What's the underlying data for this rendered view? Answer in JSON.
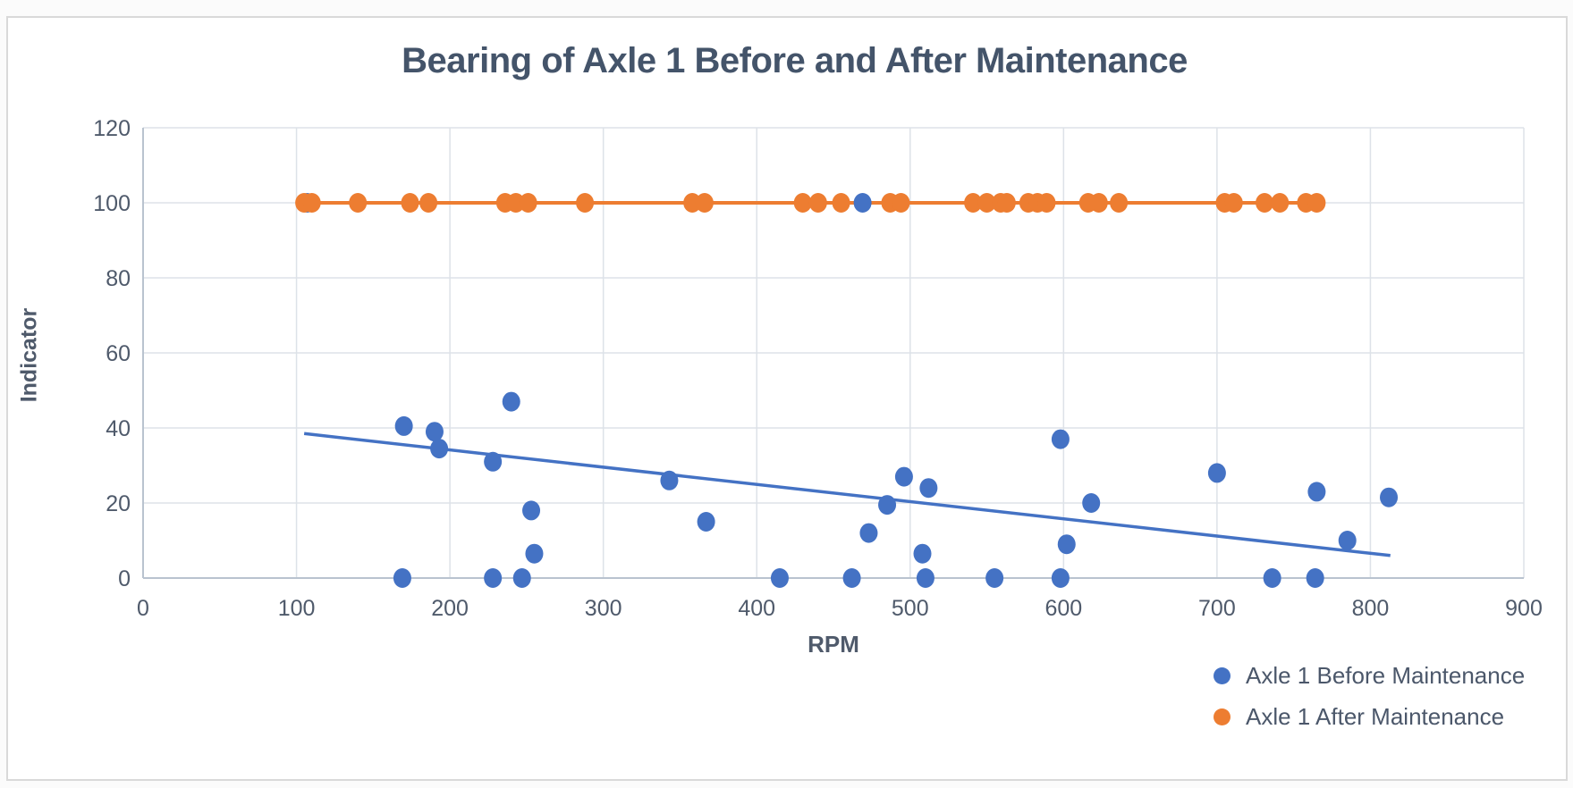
{
  "title": "Bearing of Axle 1 Before and After Maintenance",
  "axes": {
    "x": {
      "title": "RPM",
      "min": 0,
      "max": 900,
      "ticks": [
        0,
        100,
        200,
        300,
        400,
        500,
        600,
        700,
        800,
        900
      ]
    },
    "y": {
      "title": "Indicator",
      "min": 0,
      "max": 120,
      "ticks": [
        0,
        20,
        40,
        60,
        80,
        100,
        120
      ]
    }
  },
  "legend": {
    "items": [
      {
        "label": "Axle 1 Before Maintenance",
        "color": "#4472C4"
      },
      {
        "label": "Axle 1 After Maintenance",
        "color": "#ED7D31"
      }
    ]
  },
  "colors": {
    "blue": "#4472C4",
    "orange": "#ED7D31",
    "title_text": "#44546A",
    "axis_text": "#4f5a6b",
    "gridline": "#dde2e8",
    "axis_line": "#b9c3cf",
    "card_border": "#d9d9d9"
  },
  "chart_data": {
    "type": "scatter",
    "title": "Bearing of Axle 1 Before and After Maintenance",
    "xlabel": "RPM",
    "ylabel": "Indicator",
    "xlim": [
      0,
      900
    ],
    "ylim": [
      0,
      120
    ],
    "grid": true,
    "legend_position": "bottom-right",
    "series": [
      {
        "name": "Axle 1 Before Maintenance",
        "color": "#4472C4",
        "marker": "circle",
        "points": [
          [
            107,
            100
          ],
          [
            169,
            0
          ],
          [
            170,
            40.5
          ],
          [
            190,
            39
          ],
          [
            193,
            34.5
          ],
          [
            228,
            0
          ],
          [
            228,
            31
          ],
          [
            240,
            47
          ],
          [
            247,
            0
          ],
          [
            253,
            18
          ],
          [
            255,
            6.5
          ],
          [
            343,
            26
          ],
          [
            367,
            15
          ],
          [
            415,
            0
          ],
          [
            462,
            0
          ],
          [
            469,
            100
          ],
          [
            473,
            12
          ],
          [
            485,
            19.5
          ],
          [
            496,
            27
          ],
          [
            508,
            6.5
          ],
          [
            510,
            0
          ],
          [
            512,
            24
          ],
          [
            555,
            0
          ],
          [
            598,
            0
          ],
          [
            598,
            37
          ],
          [
            602,
            9
          ],
          [
            618,
            20
          ],
          [
            700,
            28
          ],
          [
            736,
            0
          ],
          [
            764,
            0
          ],
          [
            765,
            23
          ],
          [
            785,
            10
          ],
          [
            812,
            21.5
          ]
        ],
        "trendline": {
          "x1": 105,
          "y1": 38.5,
          "x2": 813,
          "y2": 6
        }
      },
      {
        "name": "Axle 1 After Maintenance",
        "color": "#ED7D31",
        "marker": "circle",
        "line": {
          "y": 100,
          "x_start": 105,
          "x_end": 765
        },
        "points_y": 100,
        "points_x": [
          105,
          110,
          140,
          174,
          186,
          236,
          243,
          251,
          288,
          358,
          366,
          430,
          440,
          455,
          487,
          494,
          541,
          550,
          559,
          563,
          577,
          583,
          589,
          616,
          623,
          636,
          705,
          711,
          731,
          741,
          758,
          765
        ]
      }
    ]
  }
}
